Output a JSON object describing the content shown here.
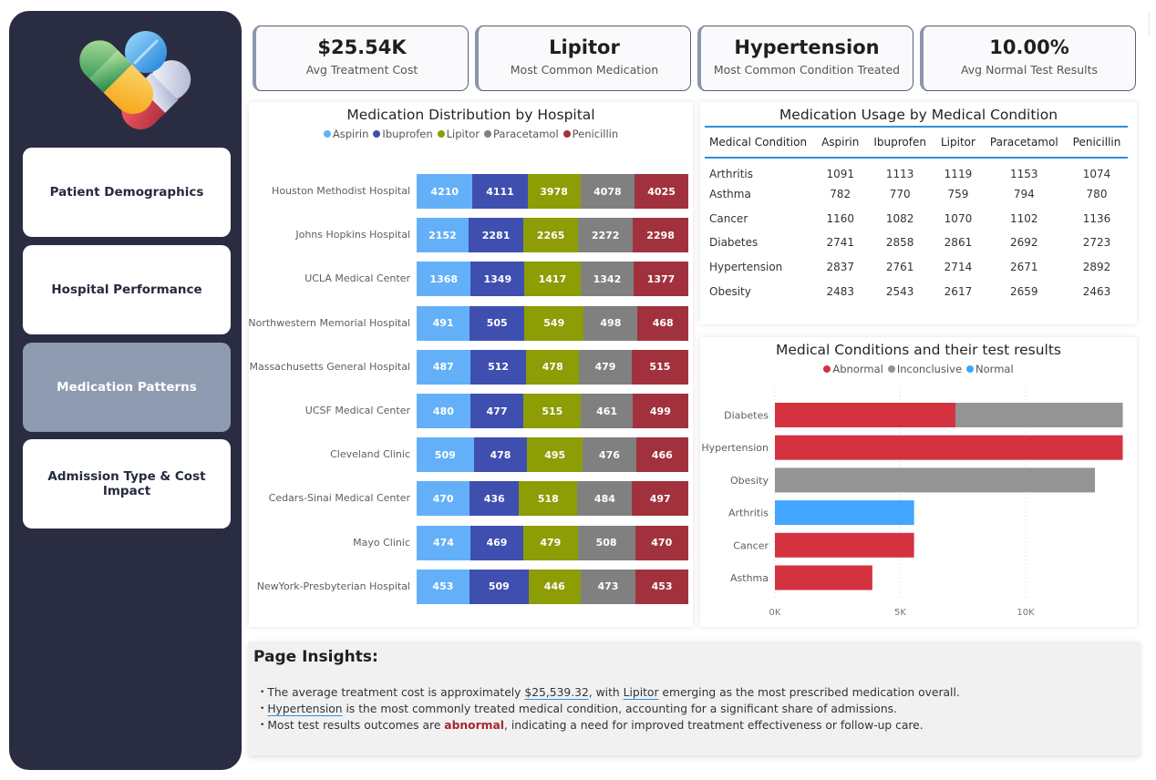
{
  "sidebar": {
    "logo_icon": "pills-icon",
    "items": [
      {
        "label": "Patient Demographics",
        "active": false
      },
      {
        "label": "Hospital Performance",
        "active": false
      },
      {
        "label": "Medication Patterns",
        "active": true
      },
      {
        "label": "Admission Type & Cost Impact",
        "active": false
      }
    ]
  },
  "kpis": [
    {
      "value": "$25.54K",
      "label": "Avg Treatment Cost"
    },
    {
      "value": "Lipitor",
      "label": "Most Common Medication"
    },
    {
      "value": "Hypertension",
      "label": "Most Common Condition Treated"
    },
    {
      "value": "10.00%",
      "label": "Avg Normal Test Results"
    }
  ],
  "colors": {
    "Aspirin": "#64b0f8",
    "Ibuprofen": "#3f4fb0",
    "Lipitor": "#8c9d06",
    "Paracetamol": "#808080",
    "Penicillin": "#a1323d",
    "Abnormal": "#d5323f",
    "Inconclusive": "#949494",
    "Normal": "#42a5ff"
  },
  "chart_data": [
    {
      "type": "bar",
      "stacked": "100%",
      "orientation": "horizontal",
      "title": "Medication Distribution by Hospital",
      "legend_position": "top-center",
      "categories": [
        "Houston Methodist Hospital",
        "Johns Hopkins Hospital",
        "UCLA Medical Center",
        "Northwestern Memorial Hospital",
        "Massachusetts General Hospital",
        "UCSF Medical Center",
        "Cleveland Clinic",
        "Cedars-Sinai Medical Center",
        "Mayo Clinic",
        "NewYork-Presbyterian Hospital"
      ],
      "series": [
        {
          "name": "Aspirin",
          "values": [
            4210,
            2152,
            1368,
            491,
            487,
            480,
            509,
            470,
            474,
            453
          ]
        },
        {
          "name": "Ibuprofen",
          "values": [
            4111,
            2281,
            1349,
            505,
            512,
            477,
            478,
            436,
            469,
            509
          ]
        },
        {
          "name": "Lipitor",
          "values": [
            3978,
            2265,
            1417,
            549,
            478,
            515,
            495,
            518,
            479,
            446
          ]
        },
        {
          "name": "Paracetamol",
          "values": [
            4078,
            2272,
            1342,
            498,
            479,
            461,
            476,
            484,
            508,
            473
          ]
        },
        {
          "name": "Penicillin",
          "values": [
            4025,
            2298,
            1377,
            468,
            515,
            499,
            466,
            497,
            470,
            453
          ]
        }
      ]
    },
    {
      "type": "table",
      "title": "Medication Usage by Medical Condition",
      "columns": [
        "Medical Condition",
        "Aspirin",
        "Ibuprofen",
        "Lipitor",
        "Paracetamol",
        "Penicillin"
      ],
      "rows": [
        [
          "Arthritis",
          "1091",
          "1113",
          "1119",
          "1153",
          "1074"
        ],
        [
          "Asthma",
          "782",
          "770",
          "759",
          "794",
          "780"
        ],
        [
          "Cancer",
          "1160",
          "1082",
          "1070",
          "1102",
          "1136"
        ],
        [
          "Diabetes",
          "2741",
          "2858",
          "2861",
          "2692",
          "2723"
        ],
        [
          "Hypertension",
          "2837",
          "2761",
          "2714",
          "2671",
          "2892"
        ],
        [
          "Obesity",
          "2483",
          "2543",
          "2617",
          "2659",
          "2463"
        ]
      ]
    },
    {
      "type": "bar",
      "stacked": true,
      "orientation": "horizontal",
      "title": "Medical Conditions and their test results",
      "legend_position": "top-center",
      "categories": [
        "Diabetes",
        "Hypertension",
        "Obesity",
        "Arthritis",
        "Cancer",
        "Asthma"
      ],
      "series": [
        {
          "name": "Abnormal",
          "values": [
            7200,
            13875,
            0,
            0,
            5550,
            3885
          ]
        },
        {
          "name": "Inconclusive",
          "values": [
            6675,
            0,
            12765,
            0,
            0,
            0
          ]
        },
        {
          "name": "Normal",
          "values": [
            0,
            0,
            0,
            5550,
            0,
            0
          ]
        }
      ],
      "xlim": [
        0,
        14500
      ],
      "xticks": [
        0,
        5000,
        10000
      ],
      "xtick_labels": [
        "0K",
        "5K",
        "10K"
      ],
      "grid": true
    }
  ],
  "insights": {
    "title": "Page Insights:",
    "items": [
      {
        "parts": [
          {
            "text": "The average treatment cost is approximately "
          },
          {
            "text": "$25,539.32",
            "style": "ul"
          },
          {
            "text": ", with "
          },
          {
            "text": "Lipitor",
            "style": "ul"
          },
          {
            "text": " emerging as the most prescribed medication overall."
          }
        ]
      },
      {
        "parts": [
          {
            "text": "Hypertension",
            "style": "ul"
          },
          {
            "text": " is the most commonly treated medical condition, accounting for a significant share of admissions."
          }
        ]
      },
      {
        "parts": [
          {
            "text": "Most test results outcomes are "
          },
          {
            "text": "abnormal",
            "style": "abn"
          },
          {
            "text": ", indicating a need for improved treatment effectiveness or follow-up care."
          }
        ]
      }
    ]
  }
}
